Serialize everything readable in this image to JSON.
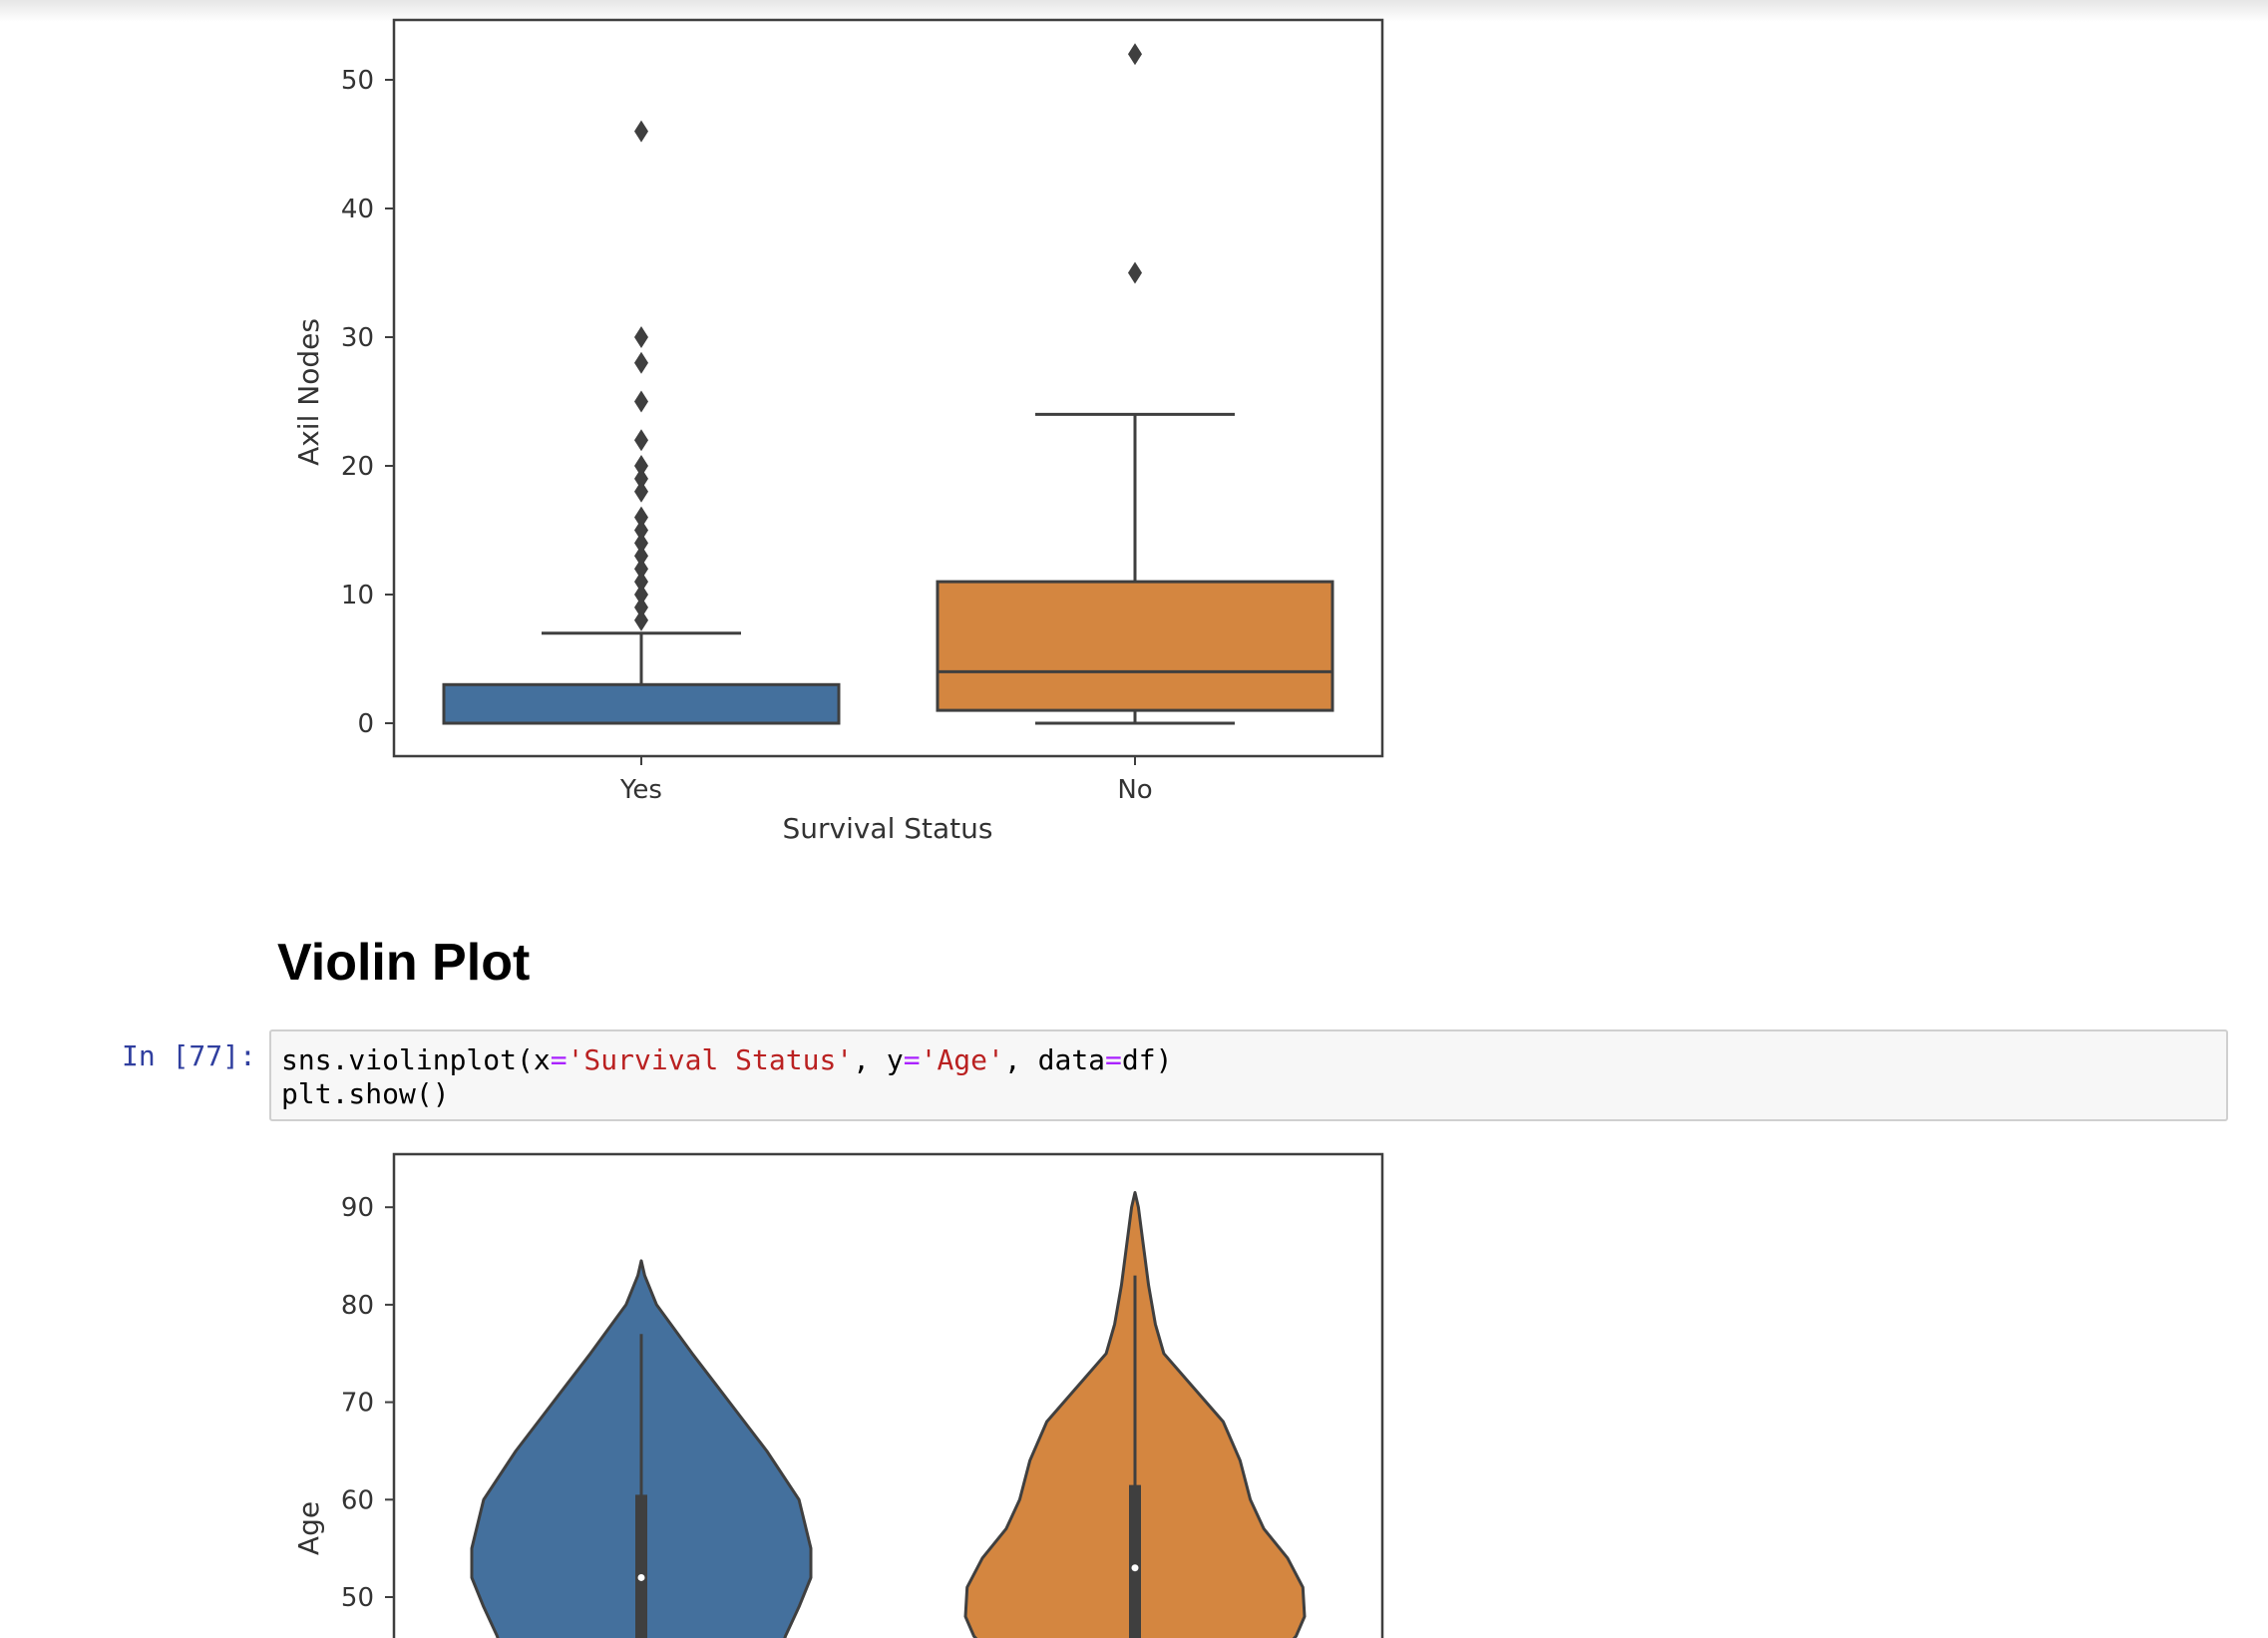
{
  "heading": "Violin Plot",
  "cell": {
    "prompt": "In [77]:",
    "line1": [
      {
        "t": "sns.violinplot(x",
        "k": "plain"
      },
      {
        "t": "=",
        "k": "op"
      },
      {
        "t": "'Survival Status'",
        "k": "str"
      },
      {
        "t": ", y",
        "k": "plain"
      },
      {
        "t": "=",
        "k": "op"
      },
      {
        "t": "'Age'",
        "k": "str"
      },
      {
        "t": ", data",
        "k": "plain"
      },
      {
        "t": "=",
        "k": "op"
      },
      {
        "t": "df)",
        "k": "plain"
      }
    ],
    "line2": "plt.show()"
  },
  "colors": {
    "yes": "#44709d",
    "no": "#d48640",
    "line": "#3f3f3f",
    "code_string": "#ba2121",
    "code_operator": "#aa22ff",
    "prompt": "#303f9f"
  },
  "chart_data": [
    {
      "type": "box",
      "xlabel": "Survival Status",
      "ylabel": "Axil Nodes",
      "categories": [
        "Yes",
        "No"
      ],
      "ylim": [
        -2.5,
        55
      ],
      "yticks": [
        0,
        10,
        20,
        30,
        40,
        50
      ],
      "series": [
        {
          "category": "Yes",
          "color": "#44709d",
          "whisker_low": 0,
          "q1": 0,
          "median": 0,
          "q3": 3,
          "whisker_high": 7,
          "outliers": [
            8,
            9,
            10,
            11,
            12,
            13,
            14,
            15,
            16,
            18,
            19,
            20,
            22,
            25,
            28,
            30,
            46
          ]
        },
        {
          "category": "No",
          "color": "#d48640",
          "whisker_low": 0,
          "q1": 1,
          "median": 4,
          "q3": 11,
          "whisker_high": 24,
          "outliers": [
            35,
            52
          ]
        }
      ]
    },
    {
      "type": "violin",
      "xlabel": "Survival Status",
      "ylabel": "Age",
      "categories": [
        "Yes",
        "No"
      ],
      "visible_yrange": [
        45,
        95
      ],
      "yticks": [
        50,
        60,
        70,
        80,
        90
      ],
      "series": [
        {
          "category": "Yes",
          "color": "#44709d",
          "top": 84.5,
          "whisker_high": 77,
          "q3": 60.5,
          "median": 52,
          "density": [
            [
              84.5,
              0
            ],
            [
              83,
              0.02
            ],
            [
              80,
              0.09
            ],
            [
              75,
              0.3
            ],
            [
              70,
              0.52
            ],
            [
              65,
              0.74
            ],
            [
              60,
              0.93
            ],
            [
              55,
              1.0
            ],
            [
              52,
              1.0
            ],
            [
              49,
              0.93
            ],
            [
              46,
              0.85
            ],
            [
              43,
              0.8
            ]
          ]
        },
        {
          "category": "No",
          "color": "#d48640",
          "top": 91.5,
          "whisker_high": 83,
          "q3": 61.5,
          "median": 53,
          "density": [
            [
              91.5,
              0
            ],
            [
              90,
              0.02
            ],
            [
              86,
              0.05
            ],
            [
              82,
              0.08
            ],
            [
              78,
              0.12
            ],
            [
              75,
              0.17
            ],
            [
              72,
              0.32
            ],
            [
              68,
              0.52
            ],
            [
              64,
              0.62
            ],
            [
              60,
              0.68
            ],
            [
              57,
              0.76
            ],
            [
              54,
              0.9
            ],
            [
              51,
              0.99
            ],
            [
              48,
              1.0
            ],
            [
              46,
              0.95
            ],
            [
              44,
              0.85
            ]
          ]
        }
      ]
    }
  ]
}
